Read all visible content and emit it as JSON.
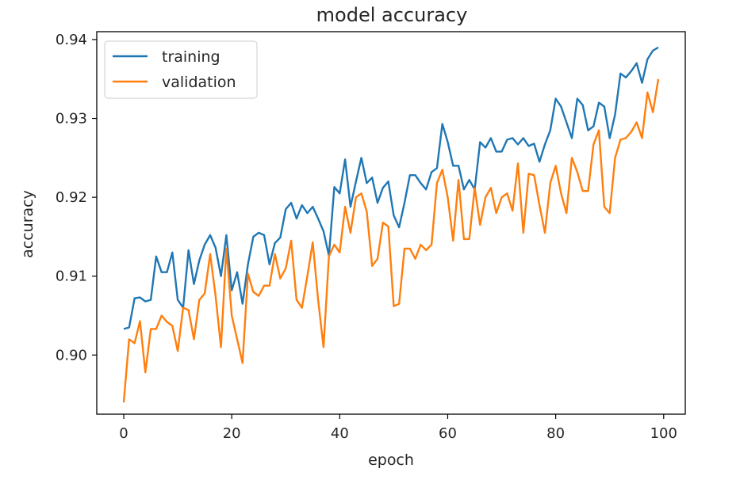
{
  "chart_data": {
    "type": "line",
    "title": "model accuracy",
    "xlabel": "epoch",
    "ylabel": "accuracy",
    "xlim": [
      -5,
      104
    ],
    "ylim": [
      0.8925,
      0.941
    ],
    "xticks": [
      0,
      20,
      40,
      60,
      80,
      100
    ],
    "xtick_labels": [
      "0",
      "20",
      "40",
      "60",
      "80",
      "100"
    ],
    "yticks": [
      0.9,
      0.91,
      0.92,
      0.93,
      0.94
    ],
    "ytick_labels": [
      "0.90",
      "0.91",
      "0.92",
      "0.93",
      "0.94"
    ],
    "grid": false,
    "legend_position": "top-left",
    "series": [
      {
        "name": "training",
        "color": "#1f77b4",
        "x": [
          0,
          1,
          2,
          3,
          4,
          5,
          6,
          7,
          8,
          9,
          10,
          11,
          12,
          13,
          14,
          15,
          16,
          17,
          18,
          19,
          20,
          21,
          22,
          23,
          24,
          25,
          26,
          27,
          28,
          29,
          30,
          31,
          32,
          33,
          34,
          35,
          36,
          37,
          38,
          39,
          40,
          41,
          42,
          43,
          44,
          45,
          46,
          47,
          48,
          49,
          50,
          51,
          52,
          53,
          54,
          55,
          56,
          57,
          58,
          59,
          60,
          61,
          62,
          63,
          64,
          65,
          66,
          67,
          68,
          69,
          70,
          71,
          72,
          73,
          74,
          75,
          76,
          77,
          78,
          79,
          80,
          81,
          82,
          83,
          84,
          85,
          86,
          87,
          88,
          89,
          90,
          91,
          92,
          93,
          94,
          95,
          96,
          97,
          98,
          99
        ],
        "values": [
          0.9033,
          0.9035,
          0.9072,
          0.9073,
          0.9068,
          0.907,
          0.9125,
          0.9105,
          0.9105,
          0.913,
          0.907,
          0.906,
          0.9133,
          0.909,
          0.912,
          0.914,
          0.9152,
          0.9136,
          0.91,
          0.9152,
          0.9082,
          0.9105,
          0.9065,
          0.9115,
          0.915,
          0.9155,
          0.9152,
          0.9115,
          0.9142,
          0.9149,
          0.9185,
          0.9193,
          0.9173,
          0.919,
          0.918,
          0.9188,
          0.9173,
          0.9157,
          0.9126,
          0.9213,
          0.9205,
          0.9248,
          0.9188,
          0.922,
          0.925,
          0.9218,
          0.9225,
          0.9193,
          0.9212,
          0.922,
          0.9177,
          0.9162,
          0.9193,
          0.9228,
          0.9228,
          0.9218,
          0.921,
          0.9232,
          0.9237,
          0.9293,
          0.927,
          0.924,
          0.924,
          0.921,
          0.9222,
          0.921,
          0.927,
          0.9263,
          0.9275,
          0.9258,
          0.9258,
          0.9273,
          0.9275,
          0.9267,
          0.9275,
          0.9265,
          0.9268,
          0.9245,
          0.9267,
          0.9285,
          0.9325,
          0.9315,
          0.9295,
          0.9275,
          0.9325,
          0.9317,
          0.9285,
          0.929,
          0.932,
          0.9315,
          0.9275,
          0.9305,
          0.9357,
          0.9352,
          0.936,
          0.937,
          0.9345,
          0.9375,
          0.9386,
          0.939
        ]
      },
      {
        "name": "validation",
        "color": "#ff7f0e",
        "x": [
          0,
          1,
          2,
          3,
          4,
          5,
          6,
          7,
          8,
          9,
          10,
          11,
          12,
          13,
          14,
          15,
          16,
          17,
          18,
          19,
          20,
          21,
          22,
          23,
          24,
          25,
          26,
          27,
          28,
          29,
          30,
          31,
          32,
          33,
          34,
          35,
          36,
          37,
          38,
          39,
          40,
          41,
          42,
          43,
          44,
          45,
          46,
          47,
          48,
          49,
          50,
          51,
          52,
          53,
          54,
          55,
          56,
          57,
          58,
          59,
          60,
          61,
          62,
          63,
          64,
          65,
          66,
          67,
          68,
          69,
          70,
          71,
          72,
          73,
          74,
          75,
          76,
          77,
          78,
          79,
          80,
          81,
          82,
          83,
          84,
          85,
          86,
          87,
          88,
          89,
          90,
          91,
          92,
          93,
          94,
          95,
          96,
          97,
          98,
          99
        ],
        "values": [
          0.894,
          0.902,
          0.9015,
          0.9043,
          0.8978,
          0.9033,
          0.9033,
          0.905,
          0.9042,
          0.9037,
          0.9005,
          0.906,
          0.9057,
          0.902,
          0.907,
          0.9078,
          0.9128,
          0.9075,
          0.901,
          0.9135,
          0.905,
          0.902,
          0.899,
          0.9103,
          0.908,
          0.9075,
          0.9088,
          0.9088,
          0.9128,
          0.9097,
          0.911,
          0.9145,
          0.907,
          0.906,
          0.91,
          0.9143,
          0.907,
          0.901,
          0.9125,
          0.914,
          0.913,
          0.9188,
          0.9155,
          0.92,
          0.9205,
          0.9182,
          0.9113,
          0.9122,
          0.9168,
          0.9163,
          0.9062,
          0.9065,
          0.9135,
          0.9135,
          0.9122,
          0.914,
          0.9133,
          0.914,
          0.9218,
          0.9235,
          0.92,
          0.9145,
          0.9222,
          0.9147,
          0.9147,
          0.9212,
          0.9165,
          0.92,
          0.9212,
          0.918,
          0.92,
          0.9205,
          0.9183,
          0.9243,
          0.9155,
          0.923,
          0.9228,
          0.919,
          0.9155,
          0.9218,
          0.924,
          0.9205,
          0.918,
          0.925,
          0.9232,
          0.9208,
          0.9208,
          0.9267,
          0.9285,
          0.9188,
          0.918,
          0.925,
          0.9273,
          0.9275,
          0.9283,
          0.9295,
          0.9275,
          0.9333,
          0.9308,
          0.935
        ]
      }
    ]
  }
}
